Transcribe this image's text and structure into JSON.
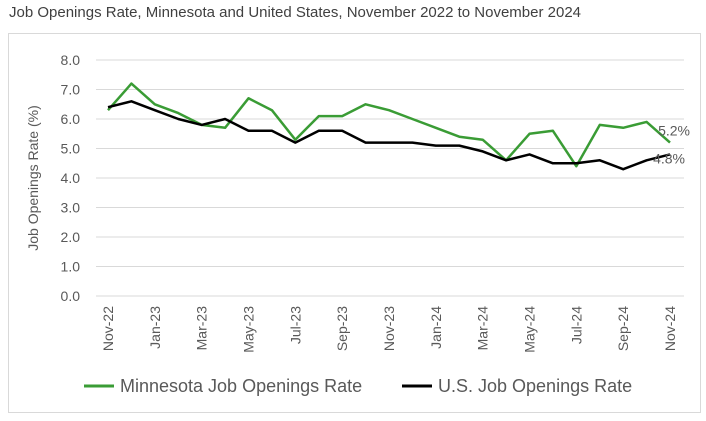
{
  "title": "Job Openings Rate, Minnesota and United States, November 2022 to November 2024",
  "chart_data": {
    "type": "line",
    "title": "Job Openings Rate, Minnesota and United States, November 2022 to November 2024",
    "ylabel": "Job Openings Rate (%)",
    "xlabel": "",
    "ylim": [
      0,
      8
    ],
    "yticks": [
      "0.0",
      "1.0",
      "2.0",
      "3.0",
      "4.0",
      "5.0",
      "6.0",
      "7.0",
      "8.0"
    ],
    "x": [
      "Nov-22",
      "Dec-22",
      "Jan-23",
      "Feb-23",
      "Mar-23",
      "Apr-23",
      "May-23",
      "Jun-23",
      "Jul-23",
      "Aug-23",
      "Sep-23",
      "Oct-23",
      "Nov-23",
      "Dec-23",
      "Jan-24",
      "Feb-24",
      "Mar-24",
      "Apr-24",
      "May-24",
      "Jun-24",
      "Jul-24",
      "Aug-24",
      "Sep-24",
      "Oct-24",
      "Nov-24"
    ],
    "xtick_labels": [
      "Nov-22",
      "Jan-23",
      "Mar-23",
      "May-23",
      "Jul-23",
      "Sep-23",
      "Nov-23",
      "Jan-24",
      "Mar-24",
      "May-24",
      "Jul-24",
      "Sep-24",
      "Nov-24"
    ],
    "grid": "horizontal",
    "legend": "bottom",
    "series": [
      {
        "name": "Minnesota Job Openings Rate",
        "color": "#3a9c35",
        "values": [
          6.3,
          7.2,
          6.5,
          6.2,
          5.8,
          5.7,
          6.7,
          6.3,
          5.3,
          6.1,
          6.1,
          6.5,
          6.3,
          6.0,
          5.7,
          5.4,
          5.3,
          4.6,
          5.5,
          5.6,
          4.4,
          5.8,
          5.7,
          5.9,
          5.2
        ],
        "end_label": "5.2%"
      },
      {
        "name": "U.S. Job Openings Rate",
        "color": "#000000",
        "values": [
          6.4,
          6.6,
          6.3,
          6.0,
          5.8,
          6.0,
          5.6,
          5.6,
          5.2,
          5.6,
          5.6,
          5.2,
          5.2,
          5.2,
          5.1,
          5.1,
          4.9,
          4.6,
          4.8,
          4.5,
          4.5,
          4.6,
          4.3,
          4.6,
          4.8
        ],
        "end_label": "4.8%"
      }
    ]
  }
}
